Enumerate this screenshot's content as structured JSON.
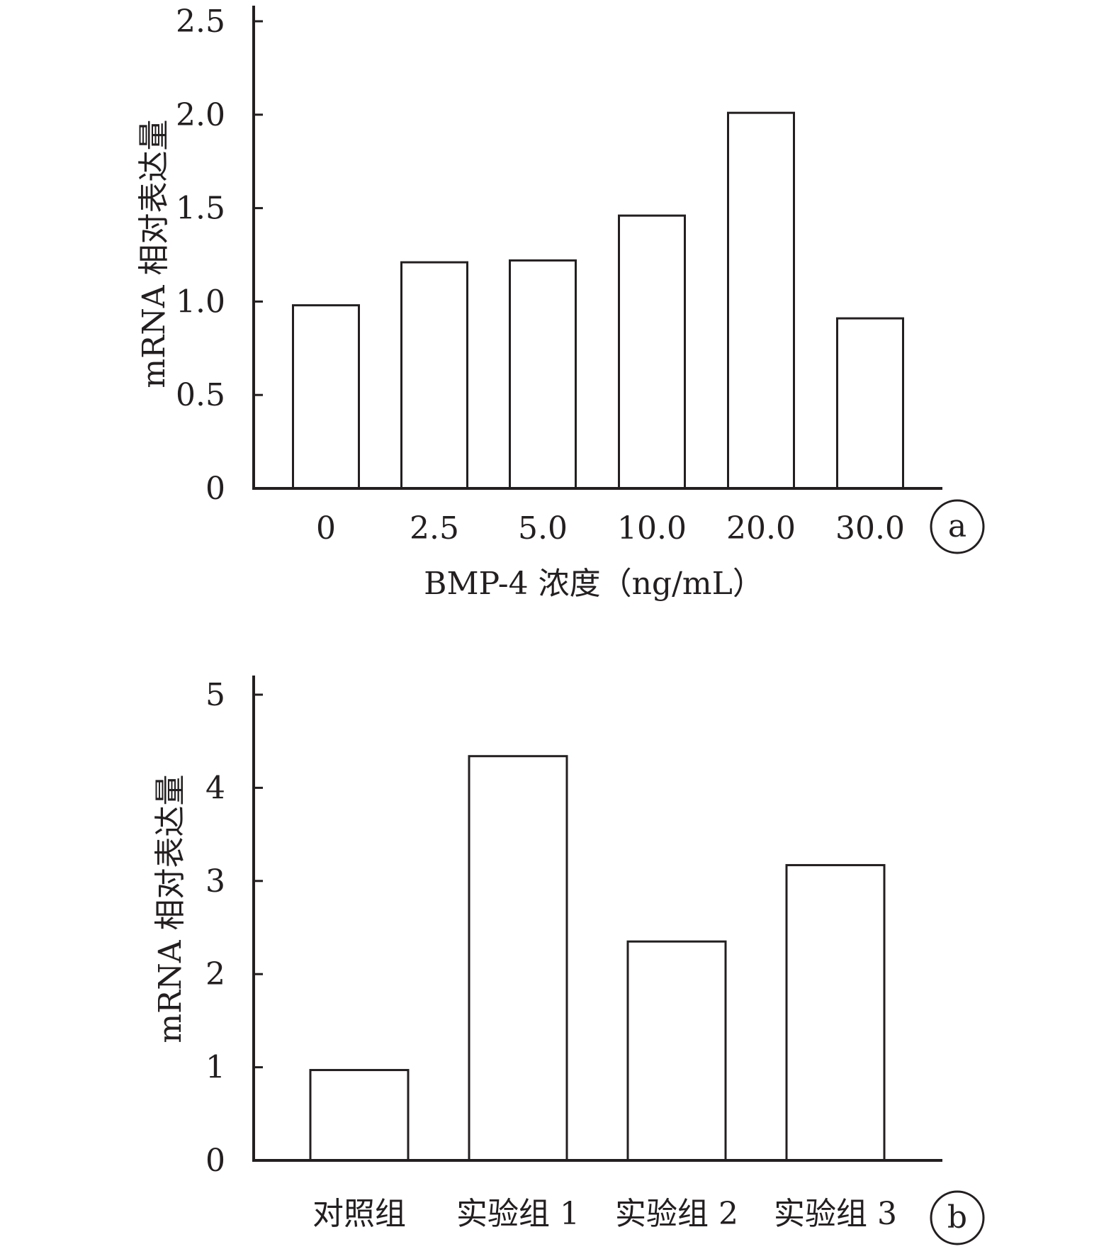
{
  "chart_data": [
    {
      "type": "bar",
      "panel_label": "a",
      "categories": [
        "0",
        "2.5",
        "5.0",
        "10.0",
        "20.0",
        "30.0"
      ],
      "values": [
        0.98,
        1.21,
        1.22,
        1.46,
        2.01,
        0.91
      ],
      "xlabel": "BMP-4 浓度（ng/mL）",
      "ylabel": "mRNA 相对表达量",
      "ylim": [
        0,
        2.5
      ],
      "yticks": [
        0,
        0.5,
        1.0,
        1.5,
        2.0,
        2.5
      ],
      "ytick_labels": [
        "0",
        "0.5",
        "1.0",
        "1.5",
        "2.0",
        "2.5"
      ],
      "grid": false,
      "colors": {
        "bar_fill": "#ffffff",
        "bar_stroke": "#231f20"
      }
    },
    {
      "type": "bar",
      "panel_label": "b",
      "categories": [
        "对照组",
        "实验组 1",
        "实验组 2",
        "实验组 3"
      ],
      "values": [
        0.97,
        4.34,
        2.35,
        3.17
      ],
      "xlabel": "",
      "ylabel": "mRNA 相对表达量",
      "ylim": [
        0,
        5
      ],
      "yticks": [
        0,
        1,
        2,
        3,
        4,
        5
      ],
      "ytick_labels": [
        "0",
        "1",
        "2",
        "3",
        "4",
        "5"
      ],
      "grid": false,
      "colors": {
        "bar_fill": "#ffffff",
        "bar_stroke": "#231f20"
      }
    }
  ]
}
